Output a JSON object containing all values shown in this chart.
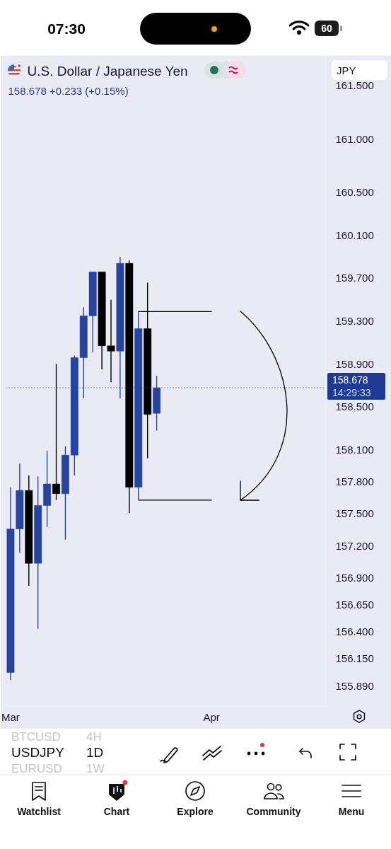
{
  "chart_data": {
    "type": "candlestick",
    "title": "U.S. Dollar / Japanese Yen",
    "subtitle": "158.678 +0.233 (+0.15%)",
    "categories": [
      "Mar",
      null,
      null,
      null,
      null,
      null,
      null,
      null,
      null,
      null,
      null,
      null,
      null,
      null,
      null,
      null,
      null,
      null,
      null,
      null,
      null,
      null,
      "Apr",
      null,
      null,
      null,
      null,
      null,
      null,
      null,
      null,
      null,
      null,
      null,
      null
    ],
    "ohlc": [
      [
        156.02,
        157.75,
        155.95,
        157.36
      ],
      [
        157.36,
        157.97,
        157.14,
        157.72
      ],
      [
        157.72,
        157.86,
        156.83,
        157.04
      ],
      [
        157.04,
        157.85,
        156.43,
        157.58
      ],
      [
        157.58,
        158.09,
        157.38,
        157.78
      ],
      [
        157.78,
        158.9,
        157.63,
        157.69
      ],
      [
        157.69,
        158.13,
        157.26,
        158.05
      ],
      [
        158.05,
        158.98,
        157.86,
        158.96
      ],
      [
        158.96,
        159.43,
        158.58,
        159.35
      ],
      [
        159.35,
        159.76,
        159.01,
        159.76
      ],
      [
        159.76,
        159.76,
        158.85,
        159.07
      ],
      [
        159.07,
        159.5,
        158.73,
        159.02
      ],
      [
        159.02,
        159.9,
        158.58,
        159.84
      ],
      [
        159.84,
        159.87,
        157.51,
        157.75
      ],
      [
        157.75,
        159.39,
        157.63,
        159.23
      ],
      [
        159.23,
        159.66,
        158.02,
        158.43
      ],
      [
        158.44,
        158.79,
        158.28,
        158.678
      ],
      null,
      null,
      null,
      null,
      null,
      null,
      null,
      null,
      null,
      null,
      null,
      null,
      null,
      null,
      null,
      null,
      null,
      null
    ],
    "colors": [
      "#27449c",
      "#27449c",
      "#000000",
      "#27449c",
      "#27449c",
      "#000000",
      "#27449c",
      "#27449c",
      "#27449c",
      "#27449c",
      "#000000",
      "#000000",
      "#27449c",
      "#000000",
      "#27449c",
      "#000000",
      "#27449c",
      null,
      null,
      null,
      null,
      null,
      null,
      null,
      null,
      null,
      null,
      null,
      null,
      null,
      null,
      null,
      null,
      null,
      null
    ],
    "series": [
      {
        "type": "line",
        "color": "#000000",
        "values": [
          null,
          null,
          null,
          null,
          null,
          null,
          null,
          null,
          null,
          null,
          null,
          null,
          null,
          null,
          159.39,
          159.39,
          159.39,
          159.39,
          159.39,
          159.39,
          159.39,
          159.39,
          159.39,
          null,
          null,
          null,
          null,
          null,
          null,
          null,
          null,
          null,
          null,
          null,
          null
        ]
      },
      {
        "type": "line",
        "color": "#000000",
        "values": [
          null,
          null,
          null,
          null,
          null,
          null,
          null,
          null,
          null,
          null,
          null,
          null,
          null,
          null,
          157.63,
          157.63,
          157.63,
          157.63,
          157.63,
          157.63,
          157.63,
          157.63,
          157.63,
          null,
          null,
          null,
          null,
          null,
          null,
          null,
          null,
          null,
          null,
          null,
          null
        ]
      }
    ],
    "ylim": [
      155.71,
      161.78
    ],
    "yticks": [
      {
        "value": 161.5,
        "label": "161.500"
      },
      {
        "value": 161.0,
        "label": "161.000"
      },
      {
        "value": 160.5,
        "label": "160.500"
      },
      {
        "value": 160.1,
        "label": "160.100"
      },
      {
        "value": 159.7,
        "label": "159.700"
      },
      {
        "value": 159.3,
        "label": "159.300"
      },
      {
        "value": 158.9,
        "label": "158.900"
      },
      {
        "value": 158.5,
        "label": "158.500"
      },
      {
        "value": 158.1,
        "label": "158.100"
      },
      {
        "value": 157.8,
        "label": "157.800"
      },
      {
        "value": 157.5,
        "label": "157.500"
      },
      {
        "value": 157.2,
        "label": "157.200"
      },
      {
        "value": 156.9,
        "label": "156.900"
      },
      {
        "value": 156.65,
        "label": "156.650"
      },
      {
        "value": 156.4,
        "label": "156.400"
      },
      {
        "value": 156.15,
        "label": "156.150"
      },
      {
        "value": 155.89,
        "label": "155.890"
      }
    ],
    "ref_lines": [
      {
        "axis": "y",
        "value": 158.678,
        "label": "158.678",
        "color": "#1f3a93",
        "line_style": "dotted"
      }
    ],
    "grid": false,
    "annotations": [
      "14:29:33",
      "07:30",
      "60",
      "JPY",
      "BTCUSD",
      "4H",
      "USDJPY",
      "1D",
      "EURUSD",
      "1W",
      "Watchlist",
      "Chart",
      "Explore",
      "Community",
      "Menu"
    ]
  }
}
